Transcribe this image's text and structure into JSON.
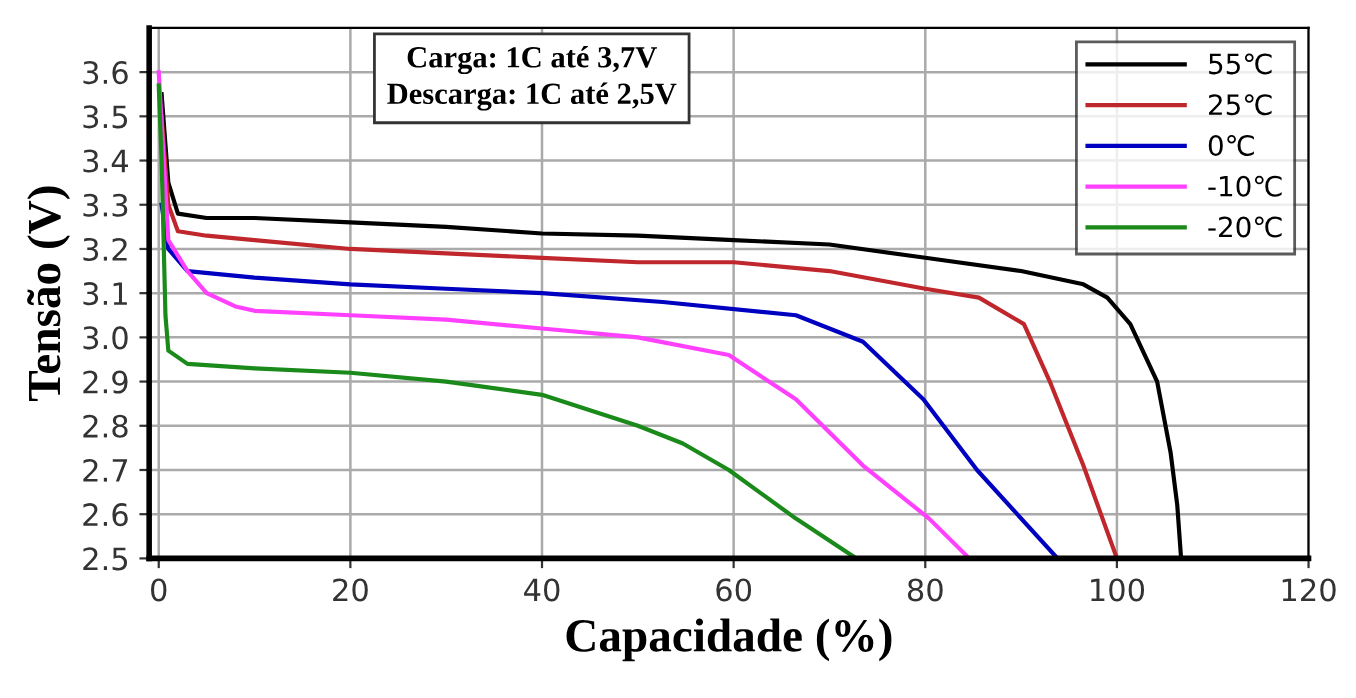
{
  "chart_data": {
    "type": "line",
    "xlabel": "Capacidade (%)",
    "ylabel": "Tensão (V)",
    "annotations": [
      "Carga: 1C até 3,7V\nDescarga: 1C até 2,5V"
    ],
    "xlim": [
      -1,
      120
    ],
    "ylim": [
      2.5,
      3.7
    ],
    "xticks": [
      0,
      20,
      40,
      60,
      80,
      100,
      120
    ],
    "yticks": [
      2.5,
      2.6,
      2.7,
      2.8,
      2.9,
      {
        "value": 3.0,
        "label": "3.0"
      },
      3.1,
      3.2,
      3.3,
      3.4,
      3.5,
      3.6
    ],
    "grid": true,
    "legend": "top right",
    "marker": "none",
    "line_style": "solid",
    "series": [
      {
        "name": "55℃",
        "color": "#000000",
        "x": [
          0.3,
          1,
          2,
          5,
          10,
          20,
          30,
          40,
          50,
          60,
          70,
          80,
          90,
          96.5,
          99,
          101.4,
          104.2,
          105.6,
          106.3,
          106.7
        ],
        "values": [
          3.55,
          3.35,
          3.28,
          3.27,
          3.27,
          3.26,
          3.25,
          3.235,
          3.23,
          3.22,
          3.21,
          3.18,
          3.15,
          3.12,
          3.09,
          3.03,
          2.9,
          2.74,
          2.62,
          2.5
        ]
      },
      {
        "name": "25℃",
        "color": "#c0272d",
        "x": [
          0.3,
          1,
          2,
          5,
          10,
          20,
          30,
          40,
          50,
          60,
          70,
          80,
          85.6,
          90.3,
          93,
          96.5,
          100
        ],
        "values": [
          3.5,
          3.3,
          3.24,
          3.23,
          3.22,
          3.2,
          3.19,
          3.18,
          3.17,
          3.17,
          3.15,
          3.11,
          3.09,
          3.03,
          2.9,
          2.71,
          2.5
        ]
      },
      {
        "name": "0℃",
        "color": "#0000c0",
        "x": [
          0.3,
          1,
          3,
          10,
          20,
          30,
          40,
          52.6,
          66.5,
          73.5,
          79.8,
          85.4,
          93.8
        ],
        "values": [
          3.3,
          3.2,
          3.15,
          3.135,
          3.12,
          3.11,
          3.1,
          3.08,
          3.05,
          2.99,
          2.86,
          2.7,
          2.5
        ]
      },
      {
        "name": "-10℃",
        "color": "#ff40ff",
        "x": [
          0,
          1,
          3,
          5,
          8,
          10,
          20,
          30,
          40,
          50,
          59.5,
          66.5,
          73.5,
          80.4,
          84.6
        ],
        "values": [
          3.6,
          3.22,
          3.15,
          3.1,
          3.07,
          3.06,
          3.05,
          3.04,
          3.02,
          3.0,
          2.96,
          2.86,
          2.71,
          2.59,
          2.5
        ]
      },
      {
        "name": "-20℃",
        "color": "#1a8a1a",
        "x": [
          0,
          0.3,
          0.7,
          1,
          3,
          10,
          20,
          30,
          40,
          50,
          54.7,
          59.5,
          66.5,
          72.8
        ],
        "values": [
          3.57,
          3.4,
          3.05,
          2.97,
          2.94,
          2.93,
          2.92,
          2.9,
          2.87,
          2.8,
          2.76,
          2.7,
          2.59,
          2.5
        ]
      }
    ]
  }
}
